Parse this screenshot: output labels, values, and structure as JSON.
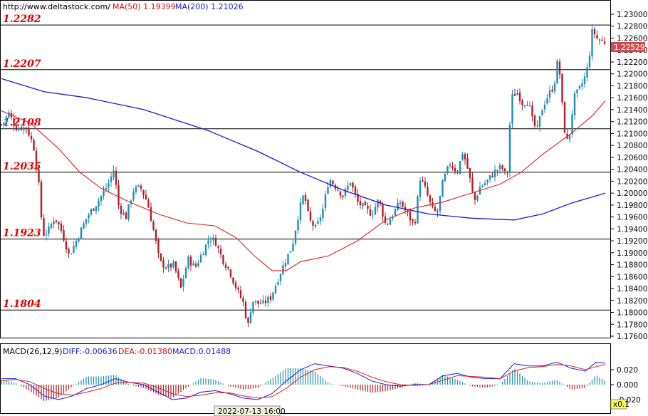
{
  "header": {
    "url": "http://www.deltastock.com/",
    "ma50": "MA(50)  1.19399",
    "ma200": "MA(200)  1.21026"
  },
  "price_panel": {
    "current_price": "1.22529",
    "y_ticks": [
      "1.23000",
      "1.22800",
      "1.22600",
      "1.22400",
      "1.22200",
      "1.22000",
      "1.21800",
      "1.21600",
      "1.21400",
      "1.21200",
      "1.21000",
      "1.20800",
      "1.20600",
      "1.20400",
      "1.20200",
      "1.20000",
      "1.19800",
      "1.19600",
      "1.19400",
      "1.19200",
      "1.19000",
      "1.18800",
      "1.18600",
      "1.18400",
      "1.18200",
      "1.18000",
      "1.17800",
      "1.17600"
    ],
    "levels": [
      {
        "label": "1.2282",
        "value": 1.2282
      },
      {
        "label": "1.2207",
        "value": 1.2207
      },
      {
        "label": "1.2108",
        "value": 1.2108
      },
      {
        "label": "1.2035",
        "value": 1.2035
      },
      {
        "label": "1.1923",
        "value": 1.1923
      },
      {
        "label": "1.1804",
        "value": 1.1804
      }
    ]
  },
  "macd_panel": {
    "title": "MACD(26,12,9)",
    "diff": "DIFF:-0.00636",
    "dea": "DEA:-0.01380",
    "macd": "MACD:0.01488",
    "y_ticks": [
      "0.020",
      "0.000",
      "-0.020"
    ],
    "scale_badge": "x0.1"
  },
  "cursor_time": "2022-07-13 16:00",
  "colors": {
    "level_text": "#e00000",
    "ma50": "#e02020",
    "ma200": "#1a1ad6",
    "candle_up": "#1f8fb0",
    "candle_down": "#b0202a",
    "price_badge": "#d04a50",
    "macd_pos": "#1f8fb0",
    "macd_neg": "#b0202a"
  },
  "chart_data": {
    "type": "candlestick",
    "ylim": [
      1.175,
      1.2315
    ],
    "horizontal_levels": [
      1.2282,
      1.2207,
      1.2108,
      1.2035,
      1.1923,
      1.1804
    ],
    "ma200_path": [
      [
        0,
        1.2192
      ],
      [
        60,
        1.217
      ],
      [
        120,
        1.216
      ],
      [
        200,
        1.214
      ],
      [
        290,
        1.2105
      ],
      [
        360,
        1.207
      ],
      [
        420,
        1.2035
      ],
      [
        480,
        1.2005
      ],
      [
        540,
        1.198
      ],
      [
        600,
        1.1965
      ],
      [
        660,
        1.1958
      ],
      [
        720,
        1.1955
      ],
      [
        760,
        1.1965
      ],
      [
        800,
        1.1983
      ],
      [
        848,
        1.2
      ]
    ],
    "ma50_path": [
      [
        0,
        1.2138
      ],
      [
        40,
        1.2118
      ],
      [
        80,
        1.2075
      ],
      [
        110,
        1.2035
      ],
      [
        140,
        1.2008
      ],
      [
        180,
        1.1985
      ],
      [
        220,
        1.1965
      ],
      [
        260,
        1.195
      ],
      [
        300,
        1.1945
      ],
      [
        330,
        1.1925
      ],
      [
        355,
        1.1895
      ],
      [
        380,
        1.187
      ],
      [
        400,
        1.187
      ],
      [
        420,
        1.1885
      ],
      [
        460,
        1.1895
      ],
      [
        500,
        1.192
      ],
      [
        540,
        1.1955
      ],
      [
        580,
        1.1975
      ],
      [
        620,
        1.1985
      ],
      [
        660,
        1.2
      ],
      [
        700,
        1.2015
      ],
      [
        730,
        1.2035
      ],
      [
        760,
        1.2065
      ],
      [
        800,
        1.21
      ],
      [
        830,
        1.213
      ],
      [
        848,
        1.2155
      ]
    ],
    "price_path": [
      [
        2,
        1.2115
      ],
      [
        10,
        1.2135
      ],
      [
        20,
        1.211
      ],
      [
        35,
        1.211
      ],
      [
        45,
        1.208
      ],
      [
        52,
        1.202
      ],
      [
        58,
        1.193
      ],
      [
        65,
        1.1935
      ],
      [
        75,
        1.196
      ],
      [
        85,
        1.1935
      ],
      [
        95,
        1.1895
      ],
      [
        105,
        1.192
      ],
      [
        120,
        1.196
      ],
      [
        135,
        1.1985
      ],
      [
        150,
        1.2015
      ],
      [
        158,
        1.204
      ],
      [
        165,
        1.1975
      ],
      [
        175,
        1.196
      ],
      [
        185,
        1.2005
      ],
      [
        195,
        1.201
      ],
      [
        205,
        1.1985
      ],
      [
        215,
        1.193
      ],
      [
        222,
        1.1885
      ],
      [
        232,
        1.1875
      ],
      [
        242,
        1.188
      ],
      [
        252,
        1.184
      ],
      [
        262,
        1.189
      ],
      [
        272,
        1.1875
      ],
      [
        282,
        1.19
      ],
      [
        292,
        1.1925
      ],
      [
        300,
        1.192
      ],
      [
        310,
        1.189
      ],
      [
        320,
        1.187
      ],
      [
        330,
        1.184
      ],
      [
        340,
        1.1815
      ],
      [
        346,
        1.1775
      ],
      [
        352,
        1.182
      ],
      [
        360,
        1.1815
      ],
      [
        368,
        1.1815
      ],
      [
        378,
        1.1825
      ],
      [
        388,
        1.1855
      ],
      [
        398,
        1.1885
      ],
      [
        408,
        1.191
      ],
      [
        418,
        1.197
      ],
      [
        425,
        1.2
      ],
      [
        432,
        1.1955
      ],
      [
        442,
        1.194
      ],
      [
        452,
        1.1975
      ],
      [
        460,
        1.2025
      ],
      [
        470,
        1.201
      ],
      [
        480,
        1.1995
      ],
      [
        490,
        1.202
      ],
      [
        500,
        1.1985
      ],
      [
        510,
        1.1975
      ],
      [
        520,
        1.1965
      ],
      [
        530,
        1.199
      ],
      [
        540,
        1.1945
      ],
      [
        550,
        1.1965
      ],
      [
        560,
        1.1985
      ],
      [
        570,
        1.1965
      ],
      [
        580,
        1.1945
      ],
      [
        588,
        1.2025
      ],
      [
        596,
        1.2005
      ],
      [
        604,
        1.1975
      ],
      [
        612,
        1.1965
      ],
      [
        620,
        1.202
      ],
      [
        630,
        1.205
      ],
      [
        640,
        1.2035
      ],
      [
        648,
        1.207
      ],
      [
        656,
        1.2035
      ],
      [
        664,
        1.1985
      ],
      [
        672,
        1.201
      ],
      [
        682,
        1.202
      ],
      [
        692,
        1.2035
      ],
      [
        702,
        1.2045
      ],
      [
        710,
        1.2025
      ],
      [
        716,
        1.216
      ],
      [
        724,
        1.217
      ],
      [
        732,
        1.215
      ],
      [
        740,
        1.2155
      ],
      [
        746,
        1.212
      ],
      [
        752,
        1.2105
      ],
      [
        760,
        1.2145
      ],
      [
        768,
        1.2165
      ],
      [
        776,
        1.218
      ],
      [
        782,
        1.223
      ],
      [
        790,
        1.211
      ],
      [
        796,
        1.208
      ],
      [
        804,
        1.216
      ],
      [
        812,
        1.2175
      ],
      [
        818,
        1.219
      ],
      [
        824,
        1.2215
      ],
      [
        830,
        1.2275
      ],
      [
        836,
        1.226
      ],
      [
        842,
        1.2255
      ],
      [
        848,
        1.22529
      ]
    ],
    "macd_diff_path": [
      [
        0,
        0.008
      ],
      [
        20,
        0.008
      ],
      [
        40,
        0.0
      ],
      [
        60,
        -0.015
      ],
      [
        80,
        -0.02
      ],
      [
        100,
        -0.015
      ],
      [
        120,
        -0.005
      ],
      [
        140,
        0.0
      ],
      [
        160,
        0.008
      ],
      [
        180,
        0.003
      ],
      [
        200,
        0.0
      ],
      [
        220,
        -0.01
      ],
      [
        240,
        -0.02
      ],
      [
        260,
        -0.018
      ],
      [
        280,
        -0.01
      ],
      [
        300,
        -0.008
      ],
      [
        320,
        -0.012
      ],
      [
        340,
        -0.018
      ],
      [
        360,
        -0.02
      ],
      [
        380,
        -0.012
      ],
      [
        400,
        0.005
      ],
      [
        420,
        0.02
      ],
      [
        440,
        0.028
      ],
      [
        460,
        0.025
      ],
      [
        480,
        0.022
      ],
      [
        500,
        0.015
      ],
      [
        520,
        0.005
      ],
      [
        540,
        0.0
      ],
      [
        560,
        -0.002
      ],
      [
        580,
        0.0
      ],
      [
        600,
        0.0
      ],
      [
        620,
        0.012
      ],
      [
        640,
        0.015
      ],
      [
        660,
        0.01
      ],
      [
        680,
        0.008
      ],
      [
        700,
        0.008
      ],
      [
        720,
        0.028
      ],
      [
        740,
        0.025
      ],
      [
        760,
        0.025
      ],
      [
        780,
        0.03
      ],
      [
        800,
        0.022
      ],
      [
        820,
        0.018
      ],
      [
        835,
        0.03
      ],
      [
        848,
        0.029
      ]
    ],
    "macd_dea_path": [
      [
        0,
        0.005
      ],
      [
        20,
        0.007
      ],
      [
        40,
        0.004
      ],
      [
        60,
        -0.005
      ],
      [
        80,
        -0.012
      ],
      [
        100,
        -0.014
      ],
      [
        120,
        -0.01
      ],
      [
        140,
        -0.005
      ],
      [
        160,
        0.002
      ],
      [
        180,
        0.003
      ],
      [
        200,
        0.002
      ],
      [
        220,
        -0.004
      ],
      [
        240,
        -0.012
      ],
      [
        260,
        -0.016
      ],
      [
        280,
        -0.014
      ],
      [
        300,
        -0.011
      ],
      [
        320,
        -0.011
      ],
      [
        340,
        -0.015
      ],
      [
        360,
        -0.018
      ],
      [
        380,
        -0.016
      ],
      [
        400,
        -0.005
      ],
      [
        420,
        0.01
      ],
      [
        440,
        0.02
      ],
      [
        460,
        0.024
      ],
      [
        480,
        0.023
      ],
      [
        500,
        0.018
      ],
      [
        520,
        0.01
      ],
      [
        540,
        0.004
      ],
      [
        560,
        0.0
      ],
      [
        580,
        -0.001
      ],
      [
        600,
        0.0
      ],
      [
        620,
        0.006
      ],
      [
        640,
        0.012
      ],
      [
        660,
        0.011
      ],
      [
        680,
        0.01
      ],
      [
        700,
        0.008
      ],
      [
        720,
        0.018
      ],
      [
        740,
        0.023
      ],
      [
        760,
        0.024
      ],
      [
        780,
        0.027
      ],
      [
        800,
        0.025
      ],
      [
        820,
        0.02
      ],
      [
        835,
        0.024
      ],
      [
        848,
        0.027
      ]
    ]
  }
}
